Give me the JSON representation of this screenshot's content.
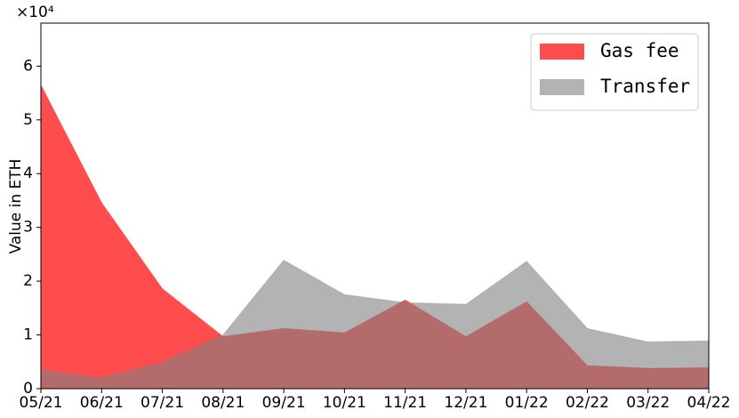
{
  "chart_data": {
    "type": "area",
    "ylabel": "Value in ETH",
    "y_offset_label": "×10⁴",
    "categories": [
      "05/21",
      "06/21",
      "07/21",
      "08/21",
      "09/21",
      "10/21",
      "11/21",
      "12/21",
      "01/22",
      "02/22",
      "03/22",
      "04/22"
    ],
    "series": [
      {
        "name": "Gas fee",
        "color": "#ff0000",
        "values": [
          5.65,
          3.46,
          1.86,
          0.97,
          1.12,
          1.04,
          1.65,
          0.97,
          1.62,
          0.43,
          0.38,
          0.39
        ]
      },
      {
        "name": "Transfer",
        "color": "#808080",
        "values": [
          0.35,
          0.2,
          0.49,
          1.0,
          2.39,
          1.75,
          1.6,
          1.57,
          2.37,
          1.12,
          0.87,
          0.89
        ]
      }
    ],
    "ylim": [
      0,
      6.8
    ],
    "yticks": [
      0,
      1,
      2,
      3,
      4,
      5,
      6
    ],
    "legend": "upper right"
  }
}
